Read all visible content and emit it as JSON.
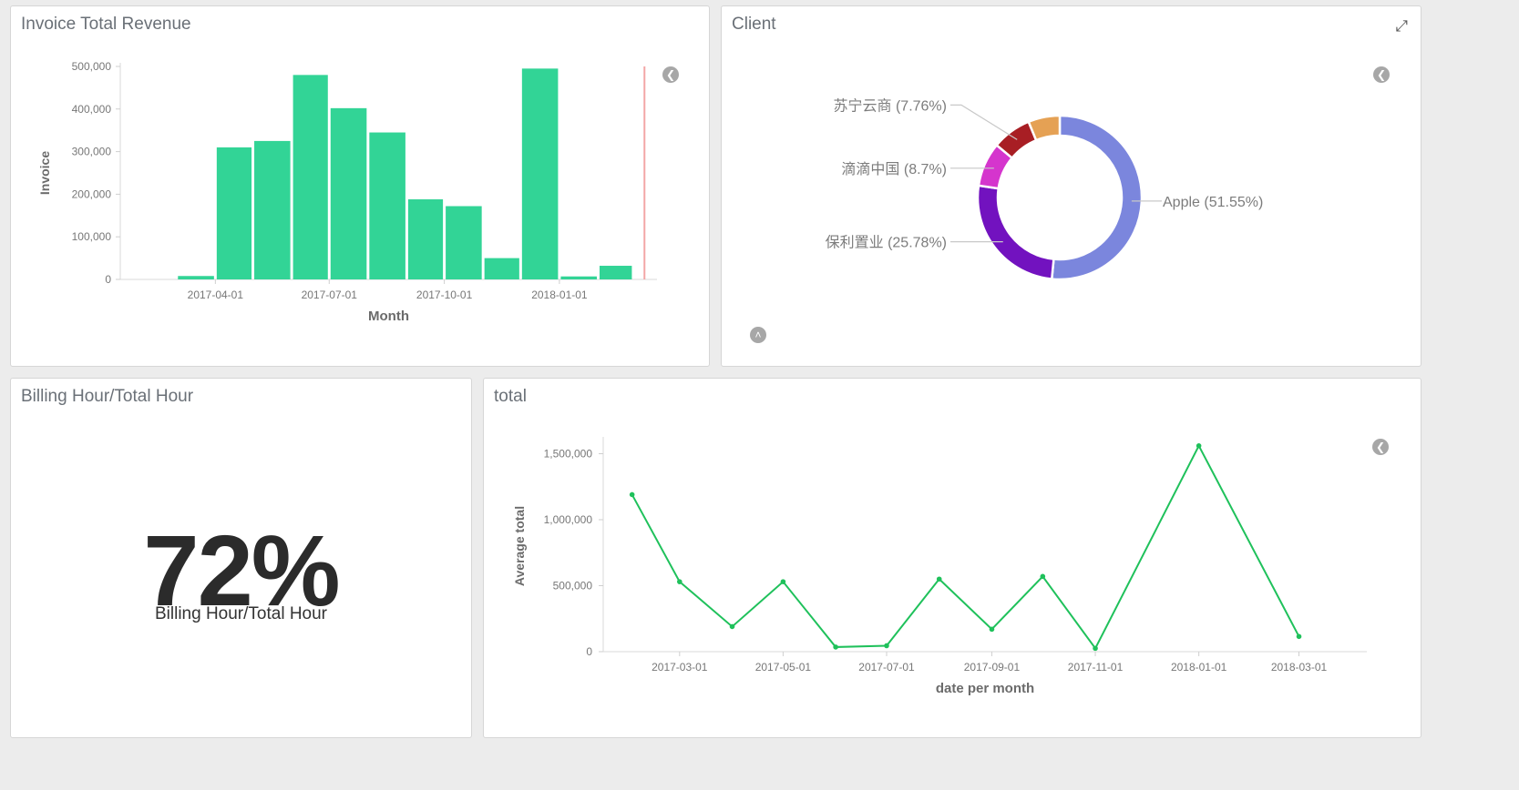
{
  "panels": {
    "invoice": {
      "title": "Invoice Total Revenue"
    },
    "client": {
      "title": "Client"
    },
    "billing": {
      "title": "Billing Hour/Total Hour",
      "value": "72%",
      "label": "Billing Hour/Total Hour"
    },
    "total": {
      "title": "total"
    }
  },
  "icons": {
    "legend_toggle": "chevron-left-icon",
    "legend_toggle_up": "chevron-up-icon",
    "expand": "expand-icon"
  },
  "chart_data": [
    {
      "id": "invoice",
      "type": "bar",
      "title": "",
      "xlabel": "Month",
      "ylabel": "Invoice",
      "ylim": [
        0,
        500000
      ],
      "yticks": [
        0,
        100000,
        200000,
        300000,
        400000,
        500000
      ],
      "ytick_labels": [
        "0",
        "100,000",
        "200,000",
        "300,000",
        "400,000",
        "500,000"
      ],
      "xlim": [
        "2017-01-15",
        "2018-03-20"
      ],
      "xtick_dates": [
        "2017-04-01",
        "2017-07-01",
        "2017-10-01",
        "2018-01-01"
      ],
      "xtick_labels": [
        "2017-04-01",
        "2017-07-01",
        "2017-10-01",
        "2018-01-01"
      ],
      "categories": [
        "2017-01",
        "2017-02",
        "2017-03",
        "2017-04",
        "2017-05",
        "2017-06",
        "2017-07",
        "2017-08",
        "2017-09",
        "2017-10",
        "2017-11",
        "2017-12",
        "2018-01",
        "2018-02",
        "2018-03"
      ],
      "values": [
        0,
        0,
        8000,
        310000,
        325000,
        480000,
        402000,
        345000,
        188000,
        172000,
        50000,
        495000,
        7000,
        32000,
        0
      ],
      "marker_date": "2018-03-10",
      "color": "#32d496",
      "marker_color": "#f3a6a6",
      "grid": false
    },
    {
      "id": "client",
      "type": "pie",
      "donut": true,
      "title": "",
      "labels": [
        "Apple",
        "保利置业",
        "滴滴中国",
        "苏宁云商",
        ""
      ],
      "values": [
        51.55,
        25.78,
        8.7,
        7.76,
        6.21
      ],
      "label_text": [
        "Apple (51.55%)",
        "保利置业 (25.78%)",
        "滴滴中国 (8.7%)",
        "苏宁云商 (7.76%)",
        ""
      ],
      "colors": [
        "#7b86dd",
        "#7212bf",
        "#d535cd",
        "#a81e24",
        "#e5a154"
      ]
    },
    {
      "id": "total",
      "type": "line",
      "title": "",
      "xlabel": "date per month",
      "ylabel": "Average total",
      "ylim": [
        0,
        1600000
      ],
      "yticks": [
        0,
        500000,
        1000000,
        1500000
      ],
      "ytick_labels": [
        "0",
        "500,000",
        "1,000,000",
        "1,500,000"
      ],
      "xlim": [
        "2017-01-15",
        "2018-04-10"
      ],
      "xtick_dates": [
        "2017-03-01",
        "2017-05-01",
        "2017-07-01",
        "2017-09-01",
        "2017-11-01",
        "2018-01-01",
        "2018-03-01"
      ],
      "xtick_labels": [
        "2017-03-01",
        "2017-05-01",
        "2017-07-01",
        "2017-09-01",
        "2017-11-01",
        "2018-01-01",
        "2018-03-01"
      ],
      "x": [
        "2017-02-01",
        "2017-03-01",
        "2017-04-01",
        "2017-05-01",
        "2017-06-01",
        "2017-07-01",
        "2017-08-01",
        "2017-09-01",
        "2017-10-01",
        "2017-11-01",
        "2018-01-01",
        "2018-03-01"
      ],
      "y": [
        1190000,
        530000,
        190000,
        530000,
        35000,
        45000,
        550000,
        170000,
        570000,
        25000,
        1560000,
        115000
      ],
      "color": "#1fc15b",
      "grid": false
    }
  ]
}
